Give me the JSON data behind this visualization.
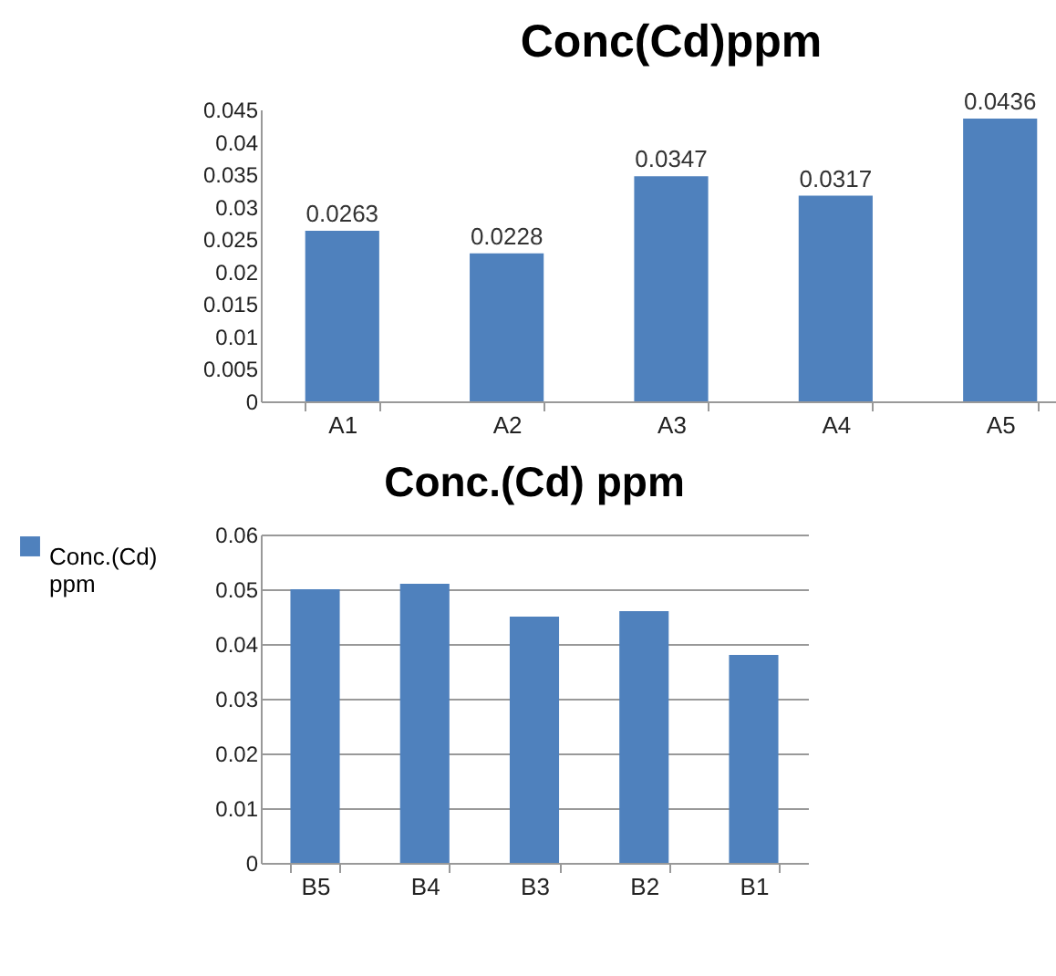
{
  "chart_data": [
    {
      "type": "bar",
      "title": "Conc(Cd)ppm",
      "categories": [
        "A1",
        "A2",
        "A3",
        "A4",
        "A5"
      ],
      "values": [
        0.0263,
        0.0228,
        0.0347,
        0.0317,
        0.0436
      ],
      "color": "#4f81bd",
      "ylim": [
        0,
        0.045
      ],
      "yticks": [
        0,
        0.005,
        0.01,
        0.015,
        0.02,
        0.025,
        0.03,
        0.035,
        0.04,
        0.045
      ],
      "grid": false,
      "data_labels": true
    },
    {
      "type": "bar",
      "title": "Conc.(Cd) ppm",
      "categories": [
        "B5",
        "B4",
        "B3",
        "B2",
        "B1"
      ],
      "series": [
        {
          "name": "Conc.(Cd) ppm",
          "color": "#4f81bd",
          "values": [
            0.05,
            0.051,
            0.045,
            0.046,
            0.038
          ]
        }
      ],
      "ylim": [
        0,
        0.06
      ],
      "yticks": [
        0,
        0.01,
        0.02,
        0.03,
        0.04,
        0.05,
        0.06
      ],
      "grid": "y",
      "legend": "left"
    }
  ]
}
